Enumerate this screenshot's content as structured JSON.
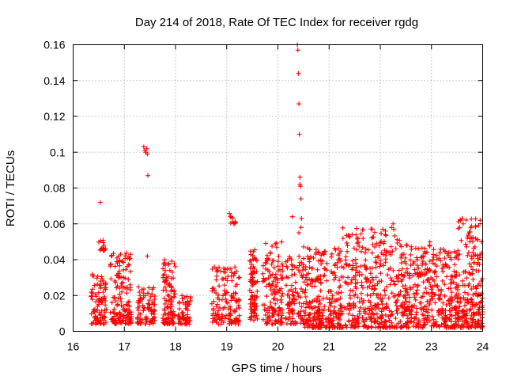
{
  "chart_data": {
    "type": "scatter",
    "title": "Day 214 of 2018, Rate Of TEC Index for receiver rgdg",
    "xlabel": "GPS time / hours",
    "ylabel": "ROTI / TECUs",
    "xlim": [
      16,
      24
    ],
    "ylim": [
      0,
      0.16
    ],
    "xticks": [
      "16",
      "17",
      "18",
      "19",
      "20",
      "21",
      "22",
      "23",
      "24"
    ],
    "yticks": [
      "0",
      "0.02",
      "0.04",
      "0.06",
      "0.08",
      "0.1",
      "0.12",
      "0.14",
      "0.16"
    ],
    "grid": true,
    "marker": "+",
    "color": "#ff0000",
    "clusters": [
      {
        "x0": 16.35,
        "x1": 16.65,
        "y0": 0.004,
        "y1": 0.032,
        "n": 90
      },
      {
        "x0": 16.5,
        "x1": 16.65,
        "y0": 0.045,
        "y1": 0.051,
        "n": 14
      },
      {
        "x0": 16.72,
        "x1": 17.15,
        "y0": 0.004,
        "y1": 0.044,
        "n": 150
      },
      {
        "x0": 17.25,
        "x1": 17.6,
        "y0": 0.004,
        "y1": 0.025,
        "n": 90
      },
      {
        "x0": 17.75,
        "x1": 18.0,
        "y0": 0.004,
        "y1": 0.04,
        "n": 100
      },
      {
        "x0": 18.05,
        "x1": 18.3,
        "y0": 0.004,
        "y1": 0.02,
        "n": 60
      },
      {
        "x0": 18.7,
        "x1": 19.25,
        "y0": 0.004,
        "y1": 0.036,
        "n": 140
      },
      {
        "x0": 19.05,
        "x1": 19.2,
        "y0": 0.06,
        "y1": 0.066,
        "n": 12
      },
      {
        "x0": 19.45,
        "x1": 19.6,
        "y0": 0.006,
        "y1": 0.046,
        "n": 80
      },
      {
        "x0": 19.7,
        "x1": 20.1,
        "y0": 0.004,
        "y1": 0.05,
        "n": 140
      },
      {
        "x0": 20.15,
        "x1": 20.5,
        "y0": 0.004,
        "y1": 0.042,
        "n": 100
      },
      {
        "x0": 20.5,
        "x1": 21.2,
        "y0": 0.002,
        "y1": 0.048,
        "n": 260
      },
      {
        "x0": 21.2,
        "x1": 22.4,
        "y0": 0.002,
        "y1": 0.058,
        "n": 380
      },
      {
        "x0": 22.4,
        "x1": 23.0,
        "y0": 0.002,
        "y1": 0.05,
        "n": 220
      },
      {
        "x0": 23.0,
        "x1": 23.5,
        "y0": 0.002,
        "y1": 0.046,
        "n": 180
      },
      {
        "x0": 23.5,
        "x1": 24.0,
        "y0": 0.002,
        "y1": 0.063,
        "n": 220
      }
    ],
    "outliers": [
      [
        16.53,
        0.072
      ],
      [
        17.38,
        0.103
      ],
      [
        17.4,
        0.101
      ],
      [
        17.42,
        0.1
      ],
      [
        17.44,
        0.102
      ],
      [
        17.45,
        0.099
      ],
      [
        17.46,
        0.087
      ],
      [
        17.45,
        0.042
      ],
      [
        20.28,
        0.064
      ],
      [
        20.38,
        0.16
      ],
      [
        20.39,
        0.157
      ],
      [
        20.4,
        0.144
      ],
      [
        20.41,
        0.127
      ],
      [
        20.42,
        0.11
      ],
      [
        20.43,
        0.086
      ],
      [
        20.43,
        0.082
      ],
      [
        20.44,
        0.081
      ],
      [
        20.45,
        0.074
      ],
      [
        20.46,
        0.063
      ],
      [
        20.41,
        0.055
      ],
      [
        20.45,
        0.058
      ],
      [
        21.45,
        0.054
      ],
      [
        22.05,
        0.057
      ],
      [
        22.1,
        0.056
      ],
      [
        22.25,
        0.06
      ],
      [
        22.22,
        0.058
      ],
      [
        23.6,
        0.063
      ],
      [
        23.62,
        0.06
      ],
      [
        23.7,
        0.052
      ],
      [
        23.75,
        0.05
      ]
    ]
  }
}
